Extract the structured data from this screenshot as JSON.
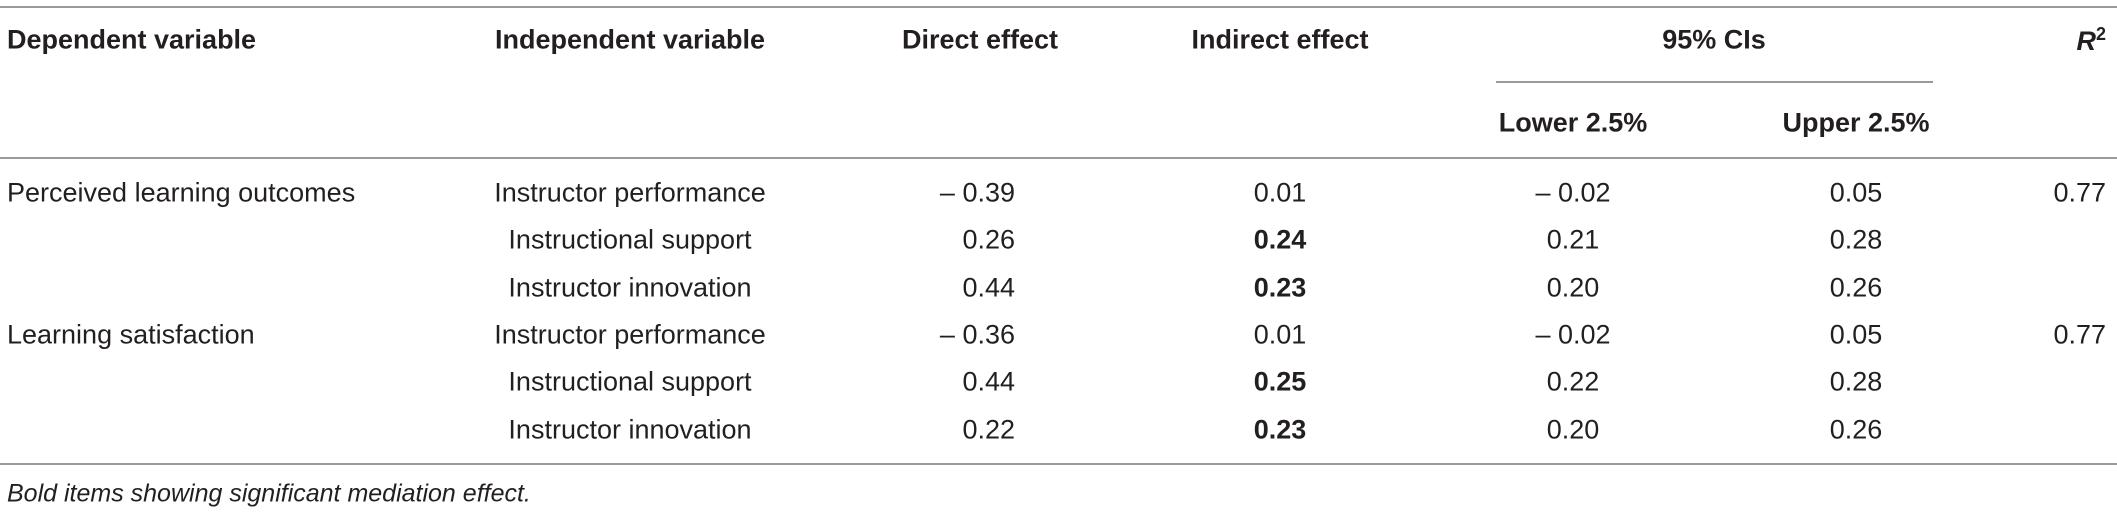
{
  "table": {
    "header": {
      "dependent": "Dependent variable",
      "independent": "Independent variable",
      "direct": "Direct effect",
      "indirect": "Indirect effect",
      "ci": "95% CIs",
      "lower": "Lower 2.5%",
      "upper": "Upper 2.5%",
      "r2": {
        "text": "R",
        "sup": "2"
      }
    },
    "groups": [
      {
        "dependent": "Perceived learning outcomes",
        "r2": "0.77",
        "rows": [
          {
            "independent": "Instructor performance",
            "direct": "– 0.39",
            "indirect": "0.01",
            "indirect_bold": false,
            "lower": "– 0.02",
            "upper": "0.05"
          },
          {
            "independent": "Instructional support",
            "direct": "0.26",
            "indirect": "0.24",
            "indirect_bold": true,
            "lower": "0.21",
            "upper": "0.28"
          },
          {
            "independent": "Instructor innovation",
            "direct": "0.44",
            "indirect": "0.23",
            "indirect_bold": true,
            "lower": "0.20",
            "upper": "0.26"
          }
        ]
      },
      {
        "dependent": "Learning satisfaction",
        "r2": "0.77",
        "rows": [
          {
            "independent": "Instructor performance",
            "direct": "– 0.36",
            "indirect": "0.01",
            "indirect_bold": false,
            "lower": "– 0.02",
            "upper": "0.05"
          },
          {
            "independent": "Instructional support",
            "direct": "0.44",
            "indirect": "0.25",
            "indirect_bold": true,
            "lower": "0.22",
            "upper": "0.28"
          },
          {
            "independent": "Instructor innovation",
            "direct": "0.22",
            "indirect": "0.23",
            "indirect_bold": true,
            "lower": "0.20",
            "upper": "0.26"
          }
        ]
      }
    ],
    "footnote": "Bold items showing significant mediation effect."
  }
}
